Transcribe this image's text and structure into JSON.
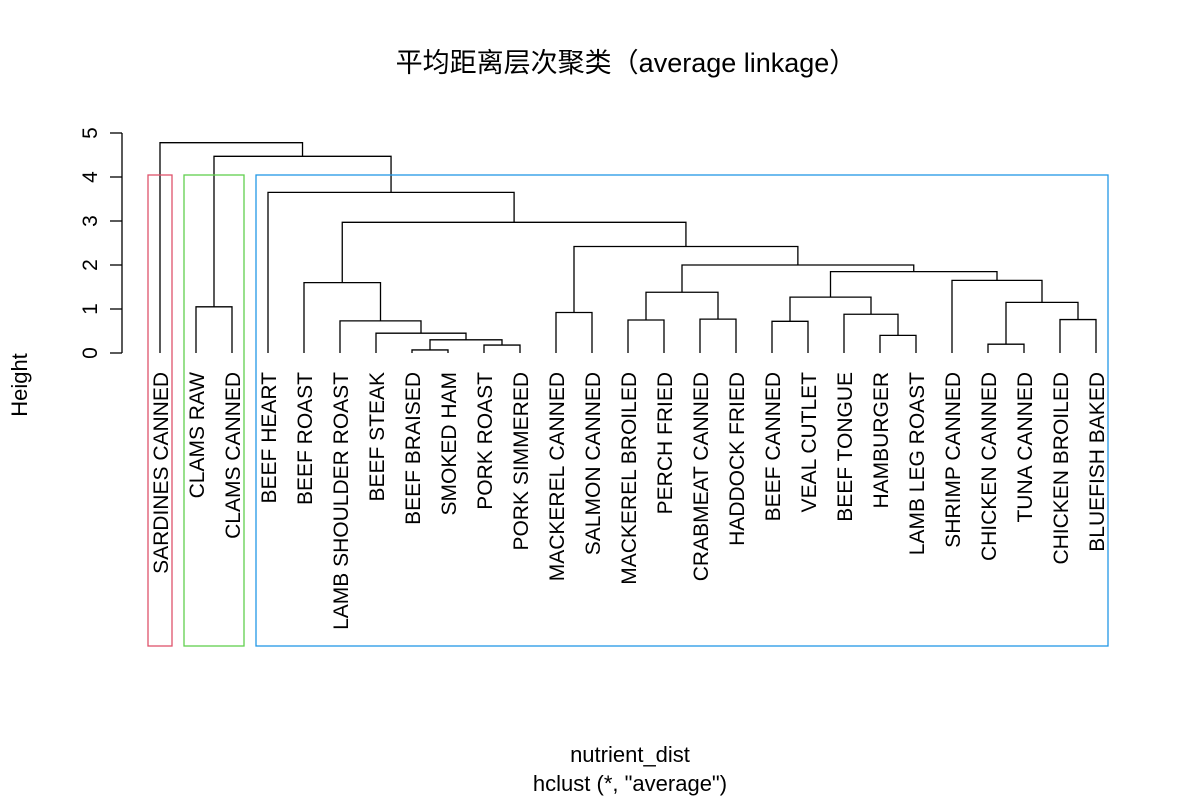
{
  "chart_data": {
    "type": "dendrogram",
    "title": "平均距离层次聚类（average linkage）",
    "xlabel": "nutrient_dist",
    "sub": "hclust (*, \"average\")",
    "ylabel": "Height",
    "ylim": [
      0,
      5
    ],
    "yticks": [
      "0",
      "1",
      "2",
      "3",
      "4",
      "5"
    ],
    "leaves": [
      "SARDINES CANNED",
      "CLAMS RAW",
      "CLAMS CANNED",
      "BEEF HEART",
      "BEEF ROAST",
      "LAMB SHOULDER ROAST",
      "BEEF STEAK",
      "BEEF BRAISED",
      "SMOKED HAM",
      "PORK ROAST",
      "PORK SIMMERED",
      "MACKEREL CANNED",
      "SALMON CANNED",
      "MACKEREL BROILED",
      "PERCH FRIED",
      "CRABMEAT CANNED",
      "HADDOCK FRIED",
      "BEEF CANNED",
      "VEAL CUTLET",
      "BEEF TONGUE",
      "HAMBURGER",
      "LAMB LEG ROAST",
      "SHRIMP CANNED",
      "CHICKEN CANNED",
      "TUNA CANNED",
      "CHICKEN BROILED",
      "BLUEFISH BAKED"
    ],
    "merges": [
      {
        "a": "L7",
        "b": "L8",
        "height": 0.07
      },
      {
        "a": "L9",
        "b": "L10",
        "height": 0.18
      },
      {
        "a": "L23",
        "b": "L24",
        "height": 0.2
      },
      {
        "a": "M0",
        "b": "M1",
        "height": 0.3
      },
      {
        "a": "L20",
        "b": "L21",
        "height": 0.4
      },
      {
        "a": "L6",
        "b": "M3",
        "height": 0.45
      },
      {
        "a": "L5",
        "b": "M5",
        "height": 0.73
      },
      {
        "a": "L17",
        "b": "L18",
        "height": 0.72
      },
      {
        "a": "L13",
        "b": "L14",
        "height": 0.75
      },
      {
        "a": "L25",
        "b": "L26",
        "height": 0.76
      },
      {
        "a": "L15",
        "b": "L16",
        "height": 0.77
      },
      {
        "a": "L19",
        "b": "M4",
        "height": 0.88
      },
      {
        "a": "L11",
        "b": "L12",
        "height": 0.92
      },
      {
        "a": "L1",
        "b": "L2",
        "height": 1.05
      },
      {
        "a": "M2",
        "b": "M9",
        "height": 1.15
      },
      {
        "a": "M7",
        "b": "M11",
        "height": 1.27
      },
      {
        "a": "M8",
        "b": "M10",
        "height": 1.38
      },
      {
        "a": "L4",
        "b": "M6",
        "height": 1.6
      },
      {
        "a": "L22",
        "b": "M14",
        "height": 1.65
      },
      {
        "a": "M15",
        "b": "M18",
        "height": 1.85
      },
      {
        "a": "M16",
        "b": "M19",
        "height": 2.0
      },
      {
        "a": "M12",
        "b": "M20",
        "height": 2.42
      },
      {
        "a": "M17",
        "b": "M21",
        "height": 2.97
      },
      {
        "a": "L3",
        "b": "M22",
        "height": 3.65
      },
      {
        "a": "M13",
        "b": "M23",
        "height": 4.47
      },
      {
        "a": "L0",
        "b": "M24",
        "height": 4.78
      }
    ],
    "clusters": [
      {
        "first": 0,
        "last": 0,
        "color": "#df536b"
      },
      {
        "first": 1,
        "last": 2,
        "color": "#61d04f"
      },
      {
        "first": 3,
        "last": 26,
        "color": "#2297e6"
      }
    ],
    "line_color": "#000000"
  }
}
